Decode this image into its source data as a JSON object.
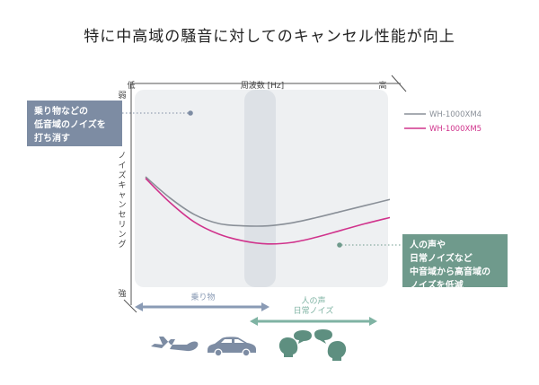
{
  "title": "特に中高域の騒音に対してのキャンセル性能が向上",
  "colors": {
    "panel": "#eef0f2",
    "band": "#dde1e6",
    "axis": "#555555",
    "xm4": "#8a9098",
    "xm5": "#d0338c",
    "callout_left": "#7d8ca3",
    "callout_right": "#6f9a8c",
    "arrow_low": "#8a9bb5",
    "arrow_high": "#7fb3a3",
    "icon_low": "#7d8ca3",
    "icon_high": "#5e8f80"
  },
  "callouts": {
    "left": [
      "乗り物などの",
      "低音域のノイズを",
      "打ち消す"
    ],
    "right": [
      "人の声や",
      "日常ノイズなど",
      "中音域から高音域の",
      "ノイズを低減"
    ]
  },
  "ranges": {
    "low": "乗り物",
    "high": [
      "人の声",
      "日常ノイズ"
    ]
  },
  "icons": [
    "airplane-icon",
    "car-icon",
    "speech-bubbles-icon"
  ],
  "chart_data": {
    "type": "line",
    "xlabel": "周波数 [Hz]",
    "ylabel": "ノイズキャンセリング",
    "x_min_label": "低",
    "x_max_label": "高",
    "y_top_label": "弱",
    "y_bottom_label": "強",
    "xlim": [
      0,
      100
    ],
    "ylim": [
      0,
      100
    ],
    "legend_position": "top-right",
    "series": [
      {
        "name": "WH-1000XM4",
        "x": [
          0,
          10,
          20,
          30,
          40,
          50,
          60,
          70,
          80,
          90,
          100
        ],
        "y": [
          72,
          58,
          47,
          41,
          39.5,
          39.5,
          41.5,
          45,
          49,
          53,
          57
        ]
      },
      {
        "name": "WH-1000XM5",
        "x": [
          0,
          10,
          20,
          30,
          40,
          50,
          60,
          70,
          80,
          90,
          100
        ],
        "y": [
          71,
          55,
          42,
          34,
          29.5,
          27.5,
          28.5,
          32,
          36.5,
          41,
          45
        ]
      }
    ]
  }
}
